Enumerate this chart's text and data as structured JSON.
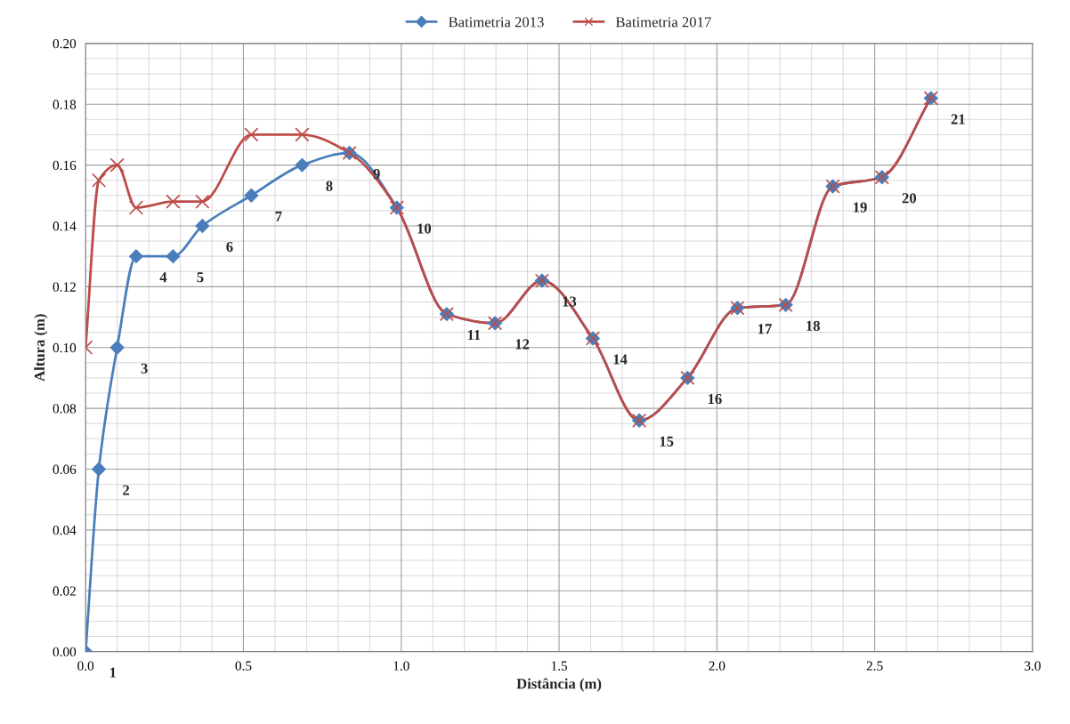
{
  "chart_data": {
    "type": "line",
    "xlabel": "Distância (m)",
    "ylabel": "Altura (m)",
    "xlim": [
      0,
      3.0
    ],
    "xticks": [
      {
        "value": 0,
        "label": "0.0"
      },
      0.5,
      {
        "value": 1,
        "label": "1.0"
      },
      1.5,
      {
        "value": 2,
        "label": "2.0"
      },
      2.5,
      {
        "value": 3,
        "label": "3.0"
      }
    ],
    "ylim": [
      0,
      0.2
    ],
    "yticks": [
      {
        "value": 0,
        "label": "0.00"
      },
      0.02,
      0.04,
      0.06,
      0.08,
      {
        "value": 0.1,
        "label": "0.10"
      },
      0.12,
      0.14,
      0.16,
      0.18,
      {
        "value": 0.2,
        "label": "0.20"
      }
    ],
    "grid": true,
    "legend": "top",
    "series": [
      {
        "name": "Batimetria 2013",
        "color": "#4a7ebb",
        "marker": "diamond",
        "x": [
          0,
          0.042,
          0.1,
          0.16,
          0.277,
          0.37,
          0.525,
          0.686,
          0.836,
          0.986,
          1.144,
          1.297,
          1.446,
          1.607,
          1.754,
          1.907,
          2.065,
          2.218,
          2.367,
          2.523,
          2.678
        ],
        "values": [
          0,
          0.06,
          0.1,
          0.13,
          0.13,
          0.14,
          0.15,
          0.16,
          0.164,
          0.146,
          0.111,
          0.108,
          0.122,
          0.103,
          0.076,
          0.09,
          0.113,
          0.114,
          0.153,
          0.156,
          0.182
        ]
      },
      {
        "name": "Batimetria 2017",
        "color": "#be4b48",
        "marker": "cross",
        "x": [
          0,
          0.042,
          0.1,
          0.16,
          0.277,
          0.37,
          0.525,
          0.686,
          0.836,
          0.986,
          1.144,
          1.297,
          1.446,
          1.607,
          1.754,
          1.907,
          2.065,
          2.218,
          2.367,
          2.523,
          2.678
        ],
        "values": [
          0.1,
          0.155,
          0.16,
          0.146,
          0.148,
          0.148,
          0.17,
          0.17,
          0.164,
          0.146,
          0.111,
          0.108,
          0.122,
          0.103,
          0.076,
          0.09,
          0.113,
          0.114,
          0.153,
          0.156,
          0.182
        ]
      }
    ],
    "annotations": [
      {
        "text": "1",
        "x": 0,
        "y": 0
      },
      {
        "text": "2",
        "x": 0.042,
        "y": 0.06
      },
      {
        "text": "3",
        "x": 0.1,
        "y": 0.1
      },
      {
        "text": "4",
        "x": 0.16,
        "y": 0.13
      },
      {
        "text": "5",
        "x": 0.277,
        "y": 0.13
      },
      {
        "text": "6",
        "x": 0.37,
        "y": 0.14
      },
      {
        "text": "7",
        "x": 0.525,
        "y": 0.15
      },
      {
        "text": "8",
        "x": 0.686,
        "y": 0.16
      },
      {
        "text": "9",
        "x": 0.836,
        "y": 0.164
      },
      {
        "text": "10",
        "x": 0.986,
        "y": 0.146
      },
      {
        "text": "11",
        "x": 1.144,
        "y": 0.111
      },
      {
        "text": "12",
        "x": 1.297,
        "y": 0.108
      },
      {
        "text": "13",
        "x": 1.446,
        "y": 0.122
      },
      {
        "text": "14",
        "x": 1.607,
        "y": 0.103
      },
      {
        "text": "15",
        "x": 1.754,
        "y": 0.076
      },
      {
        "text": "16",
        "x": 1.907,
        "y": 0.09
      },
      {
        "text": "17",
        "x": 2.065,
        "y": 0.113
      },
      {
        "text": "18",
        "x": 2.218,
        "y": 0.114
      },
      {
        "text": "19",
        "x": 2.367,
        "y": 0.153
      },
      {
        "text": "20",
        "x": 2.523,
        "y": 0.156
      },
      {
        "text": "21",
        "x": 2.678,
        "y": 0.182
      }
    ]
  }
}
